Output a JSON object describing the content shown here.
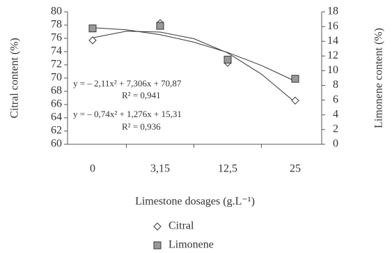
{
  "chart_data": {
    "type": "line",
    "categories": [
      "0",
      "3,15",
      "12,5",
      "25"
    ],
    "series": [
      {
        "name": "Citral",
        "color": "#555555",
        "marker": "diamond",
        "values": [
          75.7,
          78.3,
          72.3,
          66.6
        ]
      },
      {
        "name": "Limonene",
        "color": "#999999",
        "marker": "square",
        "axis": "y2",
        "values": [
          15.75,
          16.1,
          11.5,
          8.9
        ]
      }
    ],
    "ylabel": "Citral content (%)",
    "y2label": "Limonene content (%)",
    "xlabel": "Limestone dosages (g.L⁻¹)",
    "ylim": [
      60,
      80
    ],
    "yticks": [
      60,
      62,
      64,
      66,
      68,
      70,
      72,
      74,
      76,
      78,
      80
    ],
    "y2lim": [
      0,
      18
    ],
    "y2ticks": [
      0,
      2,
      4,
      6,
      8,
      10,
      12,
      14,
      16,
      18
    ],
    "annotations": [
      "y = – 2,11x² + 7,306x + 70,87",
      "R² = 0,941",
      "y = – 0,74x² + 1,276x + 15,31",
      "R² = 0,936"
    ]
  }
}
